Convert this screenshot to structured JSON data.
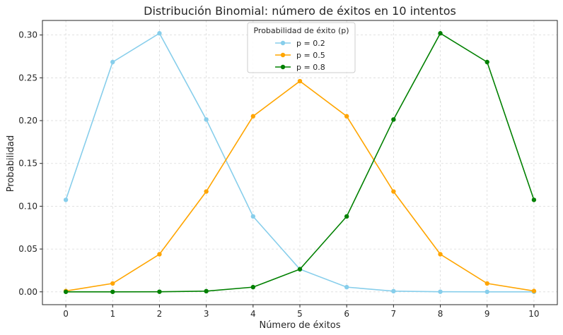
{
  "chart_data": {
    "type": "line",
    "title": "Distribución Binomial: número de éxitos en 10 intentos",
    "xlabel": "Número de éxitos",
    "ylabel": "Probabilidad",
    "x": [
      0,
      1,
      2,
      3,
      4,
      5,
      6,
      7,
      8,
      9,
      10
    ],
    "xlim": [
      -0.5,
      10.5
    ],
    "ylim": [
      -0.015,
      0.317
    ],
    "yticks": [
      0.0,
      0.05,
      0.1,
      0.15,
      0.2,
      0.25,
      0.3
    ],
    "ytick_labels": [
      "0.00",
      "0.05",
      "0.10",
      "0.15",
      "0.20",
      "0.25",
      "0.30"
    ],
    "xtick_labels": [
      "0",
      "1",
      "2",
      "3",
      "4",
      "5",
      "6",
      "7",
      "8",
      "9",
      "10"
    ],
    "grid": true,
    "legend": {
      "title": "Probabilidad de éxito (p)",
      "placement": "top-center"
    },
    "series": [
      {
        "name": "p = 0.2",
        "color": "#87ceeb",
        "values": [
          0.1074,
          0.2684,
          0.302,
          0.2013,
          0.0881,
          0.0264,
          0.0055,
          0.0008,
          0.0001,
          0.0,
          0.0
        ]
      },
      {
        "name": "p = 0.5",
        "color": "#ffa500",
        "values": [
          0.001,
          0.0098,
          0.0439,
          0.1172,
          0.2051,
          0.2461,
          0.2051,
          0.1172,
          0.0439,
          0.0098,
          0.001
        ]
      },
      {
        "name": "p = 0.8",
        "color": "#008000",
        "values": [
          0.0,
          0.0,
          0.0001,
          0.0008,
          0.0055,
          0.0264,
          0.0881,
          0.2013,
          0.302,
          0.2684,
          0.1074
        ]
      }
    ]
  }
}
